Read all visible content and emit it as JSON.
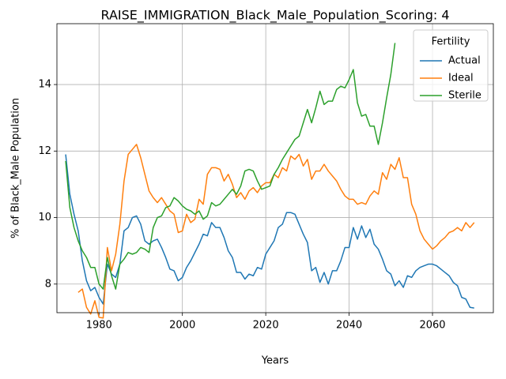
{
  "chart_data": {
    "type": "line",
    "title": "RAISE_IMMIGRATION_Black_Male_Population_Scoring: 4",
    "x_label": "Years",
    "y_label": "% of Black_Male Population",
    "legend_title": "Fertility",
    "legend_position": "upper right",
    "grid": true,
    "xlim": [
      1969.9,
      2074.6
    ],
    "ylim": [
      7.14,
      15.83
    ],
    "xticks": [
      1980,
      2000,
      2020,
      2040,
      2060
    ],
    "yticks": [
      8,
      10,
      12,
      14
    ],
    "x": [
      1972,
      1973,
      1974,
      1975,
      1976,
      1977,
      1978,
      1979,
      1980,
      1981,
      1982,
      1983,
      1984,
      1985,
      1986,
      1987,
      1988,
      1989,
      1990,
      1991,
      1992,
      1993,
      1994,
      1995,
      1996,
      1997,
      1998,
      1999,
      2000,
      2001,
      2002,
      2003,
      2004,
      2005,
      2006,
      2007,
      2008,
      2009,
      2010,
      2011,
      2012,
      2013,
      2014,
      2015,
      2016,
      2017,
      2018,
      2019,
      2020,
      2021,
      2022,
      2023,
      2024,
      2025,
      2026,
      2027,
      2028,
      2029,
      2030,
      2031,
      2032,
      2033,
      2034,
      2035,
      2036,
      2037,
      2038,
      2039,
      2040,
      2041,
      2042,
      2043,
      2044,
      2045,
      2046,
      2047,
      2048,
      2049,
      2050,
      2051,
      2052,
      2053,
      2054,
      2055,
      2056,
      2057,
      2058,
      2059,
      2060,
      2061,
      2062,
      2063,
      2064,
      2065,
      2066,
      2067,
      2068,
      2069,
      2070
    ],
    "series": [
      {
        "name": "Actual",
        "color": "#1f77b4",
        "values": [
          11.9,
          10.7,
          10.1,
          9.6,
          8.7,
          8.1,
          7.8,
          7.9,
          7.6,
          7.4,
          8.6,
          8.3,
          8.2,
          8.6,
          9.6,
          9.7,
          10.0,
          10.05,
          9.8,
          9.3,
          9.2,
          9.3,
          9.35,
          9.1,
          8.8,
          8.45,
          8.4,
          8.1,
          8.2,
          8.5,
          8.7,
          8.95,
          9.2,
          9.5,
          9.45,
          9.85,
          9.7,
          9.7,
          9.4,
          9.0,
          8.8,
          8.35,
          8.35,
          8.15,
          8.3,
          8.25,
          8.5,
          8.45,
          8.9,
          9.1,
          9.3,
          9.7,
          9.8,
          10.15,
          10.15,
          10.1,
          9.8,
          9.5,
          9.25,
          8.4,
          8.5,
          8.05,
          8.35,
          8.0,
          8.4,
          8.4,
          8.7,
          9.1,
          9.1,
          9.7,
          9.35,
          9.75,
          9.4,
          9.65,
          9.2,
          9.05,
          8.75,
          8.4,
          8.3,
          7.95,
          8.1,
          7.9,
          8.25,
          8.2,
          8.4,
          8.5,
          8.55,
          8.6,
          8.6,
          8.55,
          8.45,
          8.35,
          8.25,
          8.05,
          7.95,
          7.6,
          7.55,
          7.3,
          7.28
        ]
      },
      {
        "name": "Ideal",
        "color": "#ff7f0e",
        "values": [
          null,
          null,
          null,
          7.75,
          7.85,
          7.3,
          7.1,
          7.5,
          7.0,
          6.98,
          9.1,
          8.4,
          8.9,
          9.8,
          11.1,
          11.9,
          12.05,
          12.2,
          11.8,
          11.3,
          10.8,
          10.6,
          10.45,
          10.6,
          10.4,
          10.2,
          10.1,
          9.55,
          9.6,
          10.1,
          9.85,
          9.95,
          10.55,
          10.4,
          11.3,
          11.5,
          11.5,
          11.45,
          11.1,
          11.3,
          11.0,
          10.6,
          10.75,
          10.55,
          10.8,
          10.9,
          10.75,
          10.95,
          11.05,
          11.05,
          11.3,
          11.2,
          11.5,
          11.4,
          11.85,
          11.75,
          11.9,
          11.55,
          11.75,
          11.15,
          11.4,
          11.4,
          11.6,
          11.4,
          11.25,
          11.1,
          10.85,
          10.65,
          10.55,
          10.55,
          10.4,
          10.45,
          10.4,
          10.65,
          10.8,
          10.7,
          11.35,
          11.15,
          11.6,
          11.45,
          11.8,
          11.2,
          11.2,
          10.4,
          10.1,
          9.6,
          9.35,
          9.2,
          9.05,
          9.15,
          9.3,
          9.4,
          9.55,
          9.6,
          9.7,
          9.6,
          9.85,
          9.7,
          9.85
        ]
      },
      {
        "name": "Sterile",
        "color": "#2ca02c",
        "values": [
          11.7,
          10.3,
          9.7,
          9.3,
          9.0,
          8.8,
          8.5,
          8.5,
          8.0,
          7.85,
          8.8,
          8.25,
          7.85,
          8.6,
          8.75,
          8.95,
          8.9,
          8.95,
          9.1,
          9.05,
          8.95,
          9.7,
          10.0,
          10.05,
          10.3,
          10.35,
          10.6,
          10.5,
          10.35,
          10.25,
          10.2,
          10.1,
          10.2,
          9.95,
          10.05,
          10.45,
          10.35,
          10.4,
          10.55,
          10.7,
          10.85,
          10.7,
          10.95,
          11.4,
          11.45,
          11.4,
          11.1,
          10.85,
          10.9,
          10.95,
          11.3,
          11.5,
          11.75,
          11.95,
          12.15,
          12.35,
          12.45,
          12.85,
          13.25,
          12.85,
          13.3,
          13.8,
          13.4,
          13.5,
          13.5,
          13.85,
          13.95,
          13.9,
          14.15,
          14.45,
          13.45,
          13.05,
          13.1,
          12.75,
          12.75,
          12.2,
          12.85,
          13.6,
          14.3,
          15.25,
          null,
          null,
          null,
          null,
          null,
          null,
          null,
          null,
          null,
          null,
          null,
          null,
          null,
          null,
          null,
          null,
          null,
          null,
          null
        ]
      }
    ]
  }
}
